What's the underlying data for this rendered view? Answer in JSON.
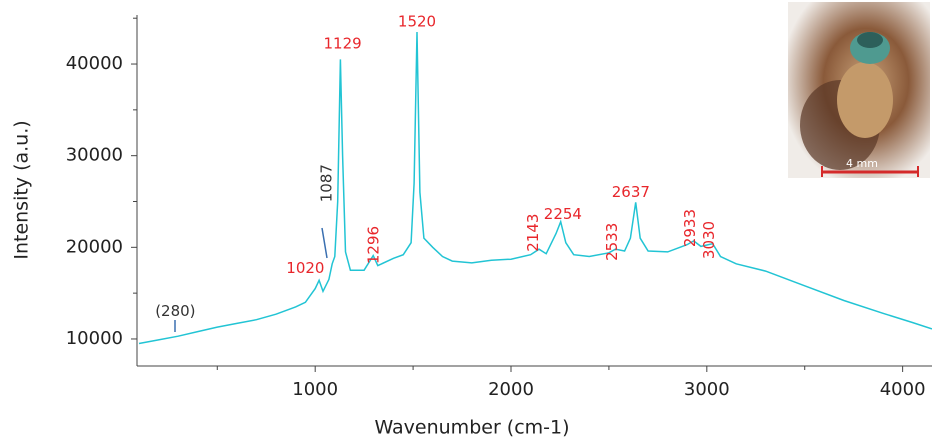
{
  "chart_data": {
    "type": "line",
    "xlabel": "Wavenumber (cm-1)",
    "ylabel": "Intensity (a.u.)",
    "color": "#22c4d4",
    "x": [
      100,
      200,
      300,
      400,
      500,
      600,
      700,
      800,
      900,
      950,
      1000,
      1020,
      1040,
      1070,
      1087,
      1100,
      1115,
      1129,
      1140,
      1155,
      1180,
      1250,
      1296,
      1320,
      1400,
      1450,
      1490,
      1505,
      1520,
      1535,
      1555,
      1600,
      1650,
      1700,
      1800,
      1900,
      2000,
      2100,
      2143,
      2180,
      2230,
      2254,
      2280,
      2320,
      2400,
      2500,
      2533,
      2580,
      2610,
      2637,
      2660,
      2700,
      2800,
      2900,
      2933,
      2970,
      3030,
      3070,
      3150,
      3300,
      3500,
      3700,
      3900,
      4050,
      4150
    ],
    "values": [
      9500,
      9900,
      10300,
      10800,
      11300,
      11700,
      12100,
      12700,
      13500,
      14000,
      15500,
      16400,
      15200,
      16500,
      18200,
      19000,
      25000,
      40500,
      30000,
      19500,
      17500,
      17500,
      19100,
      18000,
      18800,
      19200,
      20500,
      27000,
      43500,
      26000,
      21000,
      20000,
      19000,
      18500,
      18300,
      18600,
      18700,
      19200,
      19800,
      19300,
      21500,
      22800,
      20500,
      19200,
      19000,
      19400,
      19800,
      19600,
      21000,
      24900,
      21000,
      19600,
      19500,
      20300,
      20700,
      20100,
      20400,
      19000,
      18200,
      17400,
      15800,
      14200,
      12800,
      11800,
      11100
    ],
    "xlim": [
      90,
      4150
    ],
    "ylim": [
      7050,
      45350
    ],
    "xticks": [
      1000,
      2000,
      3000,
      4000
    ],
    "xminorticks": [
      500,
      1500,
      2500,
      3500
    ],
    "yticks": [
      10000,
      20000,
      30000,
      40000
    ],
    "yminorticks": [
      15000,
      25000,
      35000,
      45000
    ],
    "annotations": [
      {
        "text": "(280)",
        "x": 286,
        "y": 13000,
        "color": "#333333",
        "rotated": false
      },
      {
        "text": "1020",
        "x": 950,
        "y": 17700,
        "color": "#e8262b",
        "rotated": false
      },
      {
        "text": "1087",
        "x": 1060,
        "y": 27000,
        "color": "#333333",
        "rotated": true
      },
      {
        "text": "1129",
        "x": 1140,
        "y": 42200,
        "color": "#e8262b",
        "rotated": false
      },
      {
        "text": "1296",
        "x": 1300,
        "y": 20250,
        "color": "#e8262b",
        "rotated": true
      },
      {
        "text": "1520",
        "x": 1520,
        "y": 44600,
        "color": "#e8262b",
        "rotated": false
      },
      {
        "text": "2143",
        "x": 2115,
        "y": 21600,
        "color": "#e8262b",
        "rotated": true
      },
      {
        "text": "2254",
        "x": 2265,
        "y": 23600,
        "color": "#e8262b",
        "rotated": false
      },
      {
        "text": "2533",
        "x": 2518,
        "y": 20600,
        "color": "#e8262b",
        "rotated": true
      },
      {
        "text": "2637",
        "x": 2612,
        "y": 26000,
        "color": "#e8262b",
        "rotated": false
      },
      {
        "text": "2933",
        "x": 2916,
        "y": 22100,
        "color": "#e8262b",
        "rotated": true
      },
      {
        "text": "3030",
        "x": 3013,
        "y": 20800,
        "color": "#e8262b",
        "rotated": true
      }
    ]
  },
  "inset": {
    "scale_label": "4 mm"
  }
}
